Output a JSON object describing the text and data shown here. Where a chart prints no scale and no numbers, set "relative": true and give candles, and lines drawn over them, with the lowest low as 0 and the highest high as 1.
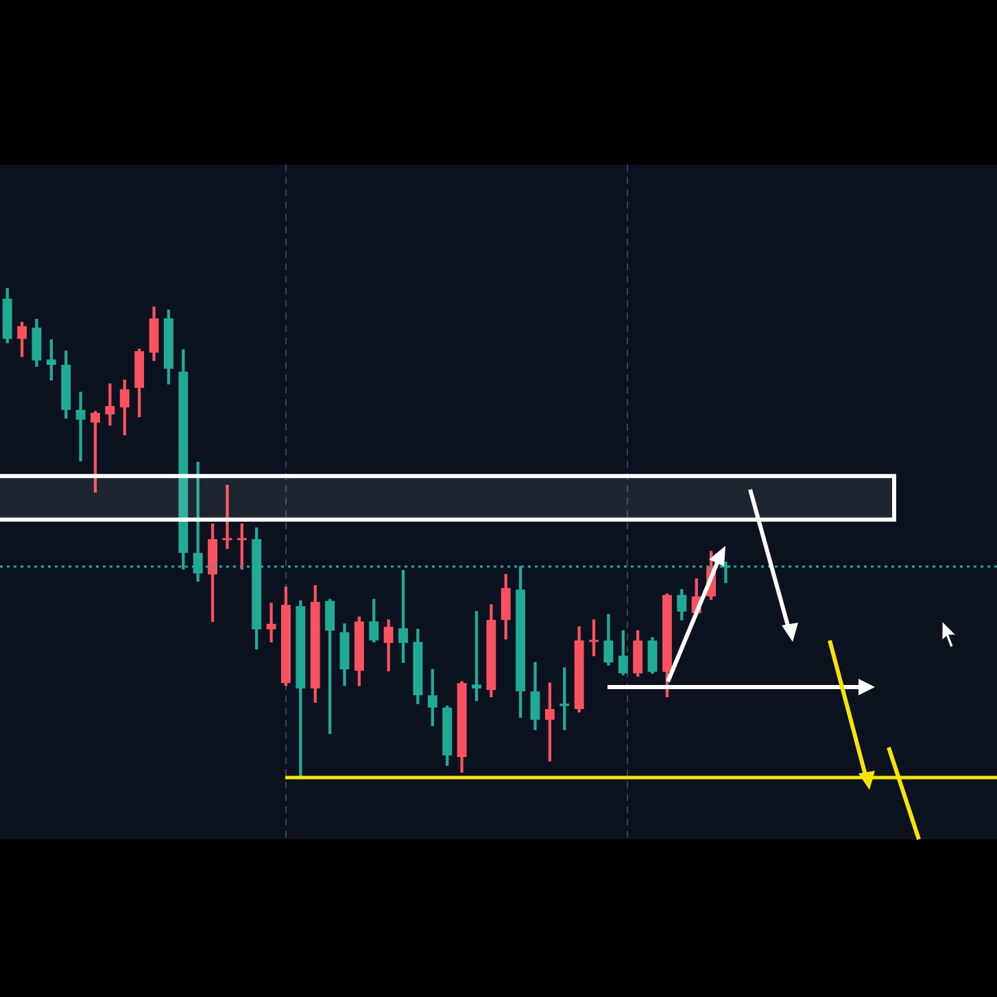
{
  "chart_data": {
    "type": "candlestick",
    "relative": true,
    "categories": [
      null,
      null,
      null,
      null,
      null,
      null,
      null,
      null,
      null,
      null,
      null,
      null,
      null,
      null,
      null,
      null,
      null,
      null,
      null,
      null,
      null,
      null,
      null,
      null,
      null,
      null,
      null,
      null,
      null,
      null,
      null,
      null,
      null,
      null,
      null,
      null,
      null,
      null,
      null,
      null,
      null,
      null,
      null,
      null,
      null,
      null,
      null,
      null,
      null,
      null,
      null,
      null,
      null,
      null,
      null,
      null,
      null,
      null,
      null,
      null,
      null,
      null,
      null,
      null,
      null,
      null,
      null,
      null
    ],
    "ohlc": [
      [
        0.978,
        1.0,
        0.888,
        0.896
      ],
      [
        0.896,
        0.93,
        0.86,
        0.922
      ],
      [
        0.919,
        0.936,
        0.84,
        0.852
      ],
      [
        0.854,
        0.894,
        0.812,
        0.843
      ],
      [
        0.843,
        0.871,
        0.734,
        0.751
      ],
      [
        0.751,
        0.787,
        0.647,
        0.731
      ],
      [
        0.725,
        0.748,
        0.583,
        0.745
      ],
      [
        0.742,
        0.804,
        0.72,
        0.759
      ],
      [
        0.756,
        0.812,
        0.7,
        0.793
      ],
      [
        0.796,
        0.875,
        0.737,
        0.871
      ],
      [
        0.868,
        0.961,
        0.852,
        0.938
      ],
      [
        0.938,
        0.955,
        0.804,
        0.835
      ],
      [
        0.829,
        0.874,
        0.426,
        0.459
      ],
      [
        0.459,
        0.644,
        0.401,
        0.417
      ],
      [
        0.415,
        0.518,
        0.319,
        0.487
      ],
      [
        0.485,
        0.597,
        0.468,
        0.487
      ],
      [
        0.485,
        0.518,
        0.426,
        0.487
      ],
      [
        0.487,
        0.51,
        0.263,
        0.303
      ],
      [
        0.303,
        0.356,
        0.277,
        0.314
      ],
      [
        0.193,
        0.389,
        0.188,
        0.353
      ],
      [
        0.35,
        0.361,
        0.0,
        0.182
      ],
      [
        0.182,
        0.392,
        0.154,
        0.359
      ],
      [
        0.361,
        0.364,
        0.09,
        0.3
      ],
      [
        0.297,
        0.314,
        0.188,
        0.221
      ],
      [
        0.218,
        0.328,
        0.188,
        0.319
      ],
      [
        0.319,
        0.364,
        0.277,
        0.28
      ],
      [
        0.275,
        0.322,
        0.218,
        0.308
      ],
      [
        0.305,
        0.423,
        0.235,
        0.275
      ],
      [
        0.277,
        0.303,
        0.151,
        0.168
      ],
      [
        0.168,
        0.221,
        0.106,
        0.143
      ],
      [
        0.143,
        0.146,
        0.025,
        0.045
      ],
      [
        0.042,
        0.196,
        0.011,
        0.193
      ],
      [
        0.19,
        0.339,
        0.157,
        0.182
      ],
      [
        0.179,
        0.353,
        0.165,
        0.322
      ],
      [
        0.322,
        0.415,
        0.283,
        0.387
      ],
      [
        0.384,
        0.431,
        0.123,
        0.176
      ],
      [
        0.176,
        0.235,
        0.098,
        0.118
      ],
      [
        0.118,
        0.193,
        0.034,
        0.14
      ],
      [
        0.151,
        0.224,
        0.098,
        0.146
      ],
      [
        0.14,
        0.308,
        0.134,
        0.28
      ],
      [
        0.277,
        0.322,
        0.249,
        0.28
      ],
      [
        0.28,
        0.333,
        0.23,
        0.235
      ],
      [
        0.249,
        0.3,
        0.21,
        0.213
      ],
      [
        0.213,
        0.3,
        0.207,
        0.28
      ],
      [
        0.28,
        0.286,
        0.213,
        0.216
      ],
      [
        0.216,
        0.375,
        0.165,
        0.373
      ],
      [
        0.373,
        0.384,
        0.322,
        0.339
      ],
      [
        0.336,
        0.406,
        0.333,
        0.37
      ],
      [
        0.37,
        0.462,
        0.364,
        0.431
      ],
      [
        0.431,
        0.44,
        0.398,
        0.429
      ],
      null,
      null,
      null,
      null,
      null,
      null,
      null,
      null,
      null,
      null,
      null,
      null,
      null,
      null,
      null,
      null,
      null,
      null
    ],
    "colors": [
      "#22ab94",
      "#f7525f",
      "#22ab94",
      "#22ab94",
      "#22ab94",
      "#22ab94",
      "#f7525f",
      "#f7525f",
      "#f7525f",
      "#f7525f",
      "#f7525f",
      "#22ab94",
      "#22ab94",
      "#22ab94",
      "#f7525f",
      "#f7525f",
      "#f7525f",
      "#22ab94",
      "#f7525f",
      "#f7525f",
      "#22ab94",
      "#f7525f",
      "#22ab94",
      "#22ab94",
      "#f7525f",
      "#22ab94",
      "#f7525f",
      "#22ab94",
      "#22ab94",
      "#22ab94",
      "#22ab94",
      "#f7525f",
      "#22ab94",
      "#f7525f",
      "#f7525f",
      "#22ab94",
      "#22ab94",
      "#f7525f",
      "#22ab94",
      "#f7525f",
      "#f7525f",
      "#22ab94",
      "#22ab94",
      "#f7525f",
      "#22ab94",
      "#f7525f",
      "#22ab94",
      "#f7525f",
      "#f7525f",
      "#22ab94",
      null,
      null,
      null,
      null,
      null,
      null,
      null,
      null,
      null,
      null,
      null,
      null,
      null,
      null,
      null,
      null,
      null,
      null
    ],
    "bands": [
      {
        "axis": "y",
        "from": 0.527,
        "to": 0.616,
        "color": "#ffffff"
      }
    ],
    "ref_lines": [
      {
        "axis": "y",
        "value": 0.431,
        "color": "#26a69a",
        "line_style": "dotted"
      },
      {
        "axis": "y",
        "value": 0,
        "color": "#f5e50a"
      }
    ]
  }
}
